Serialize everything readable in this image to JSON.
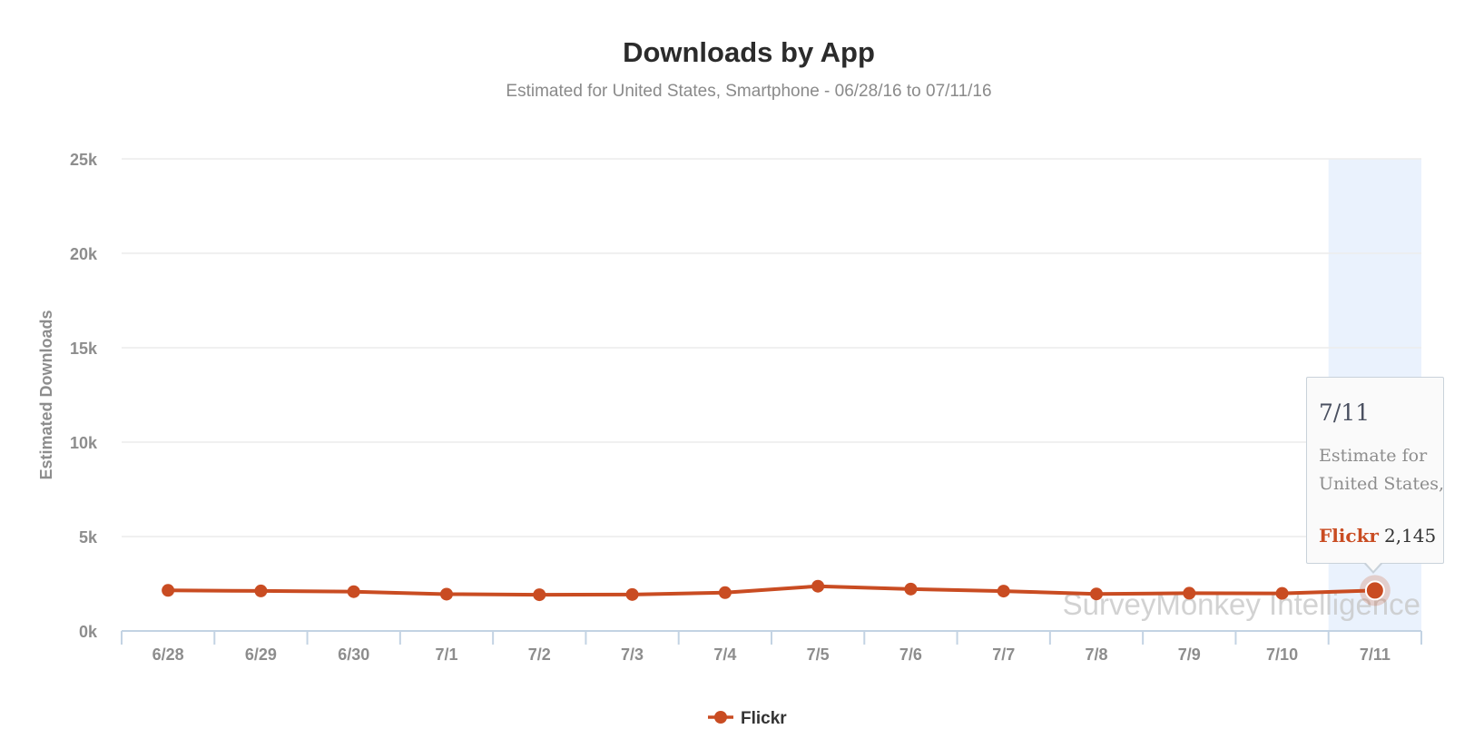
{
  "chart_data": {
    "type": "line",
    "title": "Downloads by App",
    "subtitle": "Estimated for United States, Smartphone - 06/28/16 to 07/11/16",
    "ylabel": "Estimated Downloads",
    "xlabel": "",
    "categories": [
      "6/28",
      "6/29",
      "6/30",
      "7/1",
      "7/2",
      "7/3",
      "7/4",
      "7/5",
      "7/6",
      "7/7",
      "7/8",
      "7/9",
      "7/10",
      "7/11"
    ],
    "series": [
      {
        "name": "Flickr",
        "color": "#c94c22",
        "values": [
          2150,
          2120,
          2080,
          1950,
          1920,
          1930,
          2030,
          2370,
          2220,
          2110,
          1960,
          2000,
          1990,
          2145
        ]
      }
    ],
    "ylim": [
      0,
      25000
    ],
    "yticks": [
      0,
      5000,
      10000,
      15000,
      20000,
      25000
    ],
    "ytick_labels": [
      "0k",
      "5k",
      "10k",
      "15k",
      "20k",
      "25k"
    ],
    "grid": true,
    "legend": {
      "position": "bottom-center",
      "entries": [
        "Flickr"
      ]
    },
    "highlighted_category": "7/11",
    "watermark": "SurveyMonkey Intelligence",
    "tooltip": {
      "date": "7/11",
      "description_line1": "Estimate for",
      "description_line2": "United States, Smartphone",
      "series_name": "Flickr",
      "value_label": "2,145"
    }
  }
}
